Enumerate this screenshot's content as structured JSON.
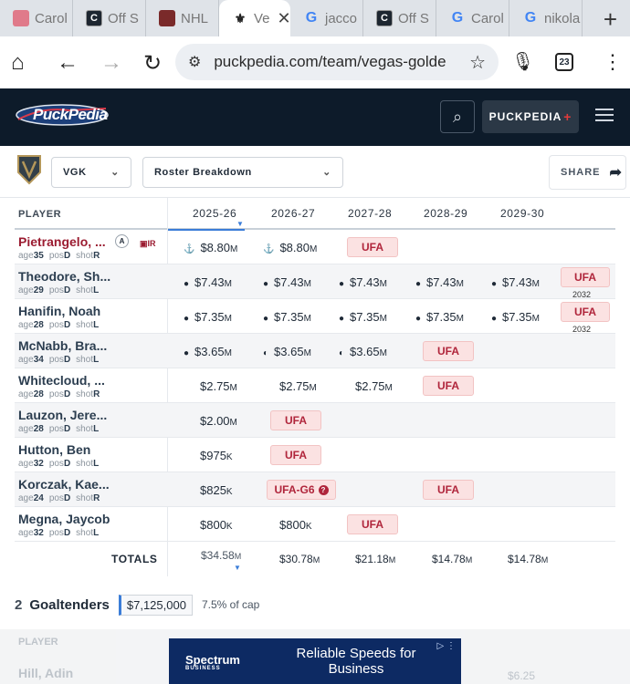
{
  "browser": {
    "tabs": [
      {
        "title": "Carol",
        "favicon": "carol-icon"
      },
      {
        "title": "Off S",
        "favicon": "off-icon"
      },
      {
        "title": "NHL",
        "favicon": "nhl-icon"
      },
      {
        "title": "Ve",
        "favicon": "vgk-icon",
        "active": true
      },
      {
        "title": "jacco",
        "favicon": "google-icon"
      },
      {
        "title": "Off S",
        "favicon": "off-icon"
      },
      {
        "title": "Carol",
        "favicon": "google-icon"
      },
      {
        "title": "nikola",
        "favicon": "google-icon"
      }
    ],
    "url": "puckpedia.com/team/vegas-golde",
    "tab_count": "23"
  },
  "site": {
    "logo_text": "PuckPedia",
    "premium_label": "PUCKPEDIA",
    "premium_plus": "+"
  },
  "controls": {
    "team": "VGK",
    "view": "Roster Breakdown",
    "share_label": "SHARE"
  },
  "table": {
    "player_header": "PLAYER",
    "years": [
      "2025-26",
      "2026-27",
      "2027-28",
      "2028-29",
      "2029-30"
    ],
    "rows": [
      {
        "name": "Pietrangelo, ...",
        "badge": "A",
        "ir": "IR",
        "age": "35",
        "pos": "D",
        "shot": "R",
        "cells": [
          {
            "ico": "⚓",
            "v": "$8.80",
            "u": "M"
          },
          {
            "ico": "⚓",
            "v": "$8.80",
            "u": "M"
          },
          {
            "ufa": "UFA"
          }
        ]
      },
      {
        "name": "Theodore, Sh...",
        "age": "29",
        "pos": "D",
        "shot": "L",
        "cells": [
          {
            "ico": "●",
            "v": "$7.43",
            "u": "M"
          },
          {
            "ico": "●",
            "v": "$7.43",
            "u": "M"
          },
          {
            "ico": "●",
            "v": "$7.43",
            "u": "M"
          },
          {
            "ico": "●",
            "v": "$7.43",
            "u": "M"
          },
          {
            "ico": "●",
            "v": "$7.43",
            "u": "M"
          }
        ],
        "ufa_end": "UFA",
        "ufa_year": "2032"
      },
      {
        "name": "Hanifin, Noah",
        "age": "28",
        "pos": "D",
        "shot": "L",
        "cells": [
          {
            "ico": "●",
            "v": "$7.35",
            "u": "M"
          },
          {
            "ico": "●",
            "v": "$7.35",
            "u": "M"
          },
          {
            "ico": "●",
            "v": "$7.35",
            "u": "M"
          },
          {
            "ico": "●",
            "v": "$7.35",
            "u": "M"
          },
          {
            "ico": "●",
            "v": "$7.35",
            "u": "M"
          }
        ],
        "ufa_end": "UFA",
        "ufa_year": "2032"
      },
      {
        "name": "McNabb, Bra...",
        "age": "34",
        "pos": "D",
        "shot": "L",
        "cells": [
          {
            "ico": "●",
            "v": "$3.65",
            "u": "M"
          },
          {
            "ico": "◐",
            "v": "$3.65",
            "u": "M"
          },
          {
            "ico": "◐",
            "v": "$3.65",
            "u": "M"
          },
          {
            "ufa": "UFA"
          }
        ]
      },
      {
        "name": "Whitecloud, ...",
        "age": "28",
        "pos": "D",
        "shot": "R",
        "cells": [
          {
            "v": "$2.75",
            "u": "M"
          },
          {
            "v": "$2.75",
            "u": "M"
          },
          {
            "v": "$2.75",
            "u": "M"
          },
          {
            "ufa": "UFA"
          }
        ]
      },
      {
        "name": "Lauzon, Jere...",
        "age": "28",
        "pos": "D",
        "shot": "L",
        "cells": [
          {
            "v": "$2.00",
            "u": "M"
          },
          {
            "ufa": "UFA"
          }
        ]
      },
      {
        "name": "Hutton, Ben",
        "age": "32",
        "pos": "D",
        "shot": "L",
        "cells": [
          {
            "v": "$975",
            "u": "K"
          },
          {
            "ufa": "UFA"
          }
        ]
      },
      {
        "name": "Korczak, Kae...",
        "age": "24",
        "pos": "D",
        "shot": "R",
        "cells": [
          {
            "v": "$825",
            "u": "K"
          },
          {
            "ufa": "UFA-G6",
            "q": "?"
          },
          {},
          {
            "ufa": "UFA"
          }
        ]
      },
      {
        "name": "Megna, Jaycob",
        "age": "32",
        "pos": "D",
        "shot": "L",
        "cells": [
          {
            "v": "$800",
            "u": "K"
          },
          {
            "v": "$800",
            "u": "K"
          },
          {
            "ufa": "UFA"
          }
        ]
      }
    ],
    "totals_label": "TOTALS",
    "totals": [
      {
        "v": "$34.58",
        "u": "M"
      },
      {
        "v": "$30.78",
        "u": "M"
      },
      {
        "v": "$21.18",
        "u": "M"
      },
      {
        "v": "$14.78",
        "u": "M"
      },
      {
        "v": "$14.78",
        "u": "M"
      }
    ],
    "meta_labels": {
      "age": "age",
      "pos": "pos",
      "shot": "shot"
    }
  },
  "goaltenders": {
    "count": "2",
    "title": "Goaltenders",
    "cap_hit": "$7,125,000",
    "cap_pct": "7.5% of cap",
    "next_row_name": "Hill, Adin",
    "next_row_value": "$6.25"
  },
  "ad": {
    "brand": "Spectrum",
    "brand_sub": "BUSINESS",
    "message": "Reliable Speeds for Business"
  }
}
